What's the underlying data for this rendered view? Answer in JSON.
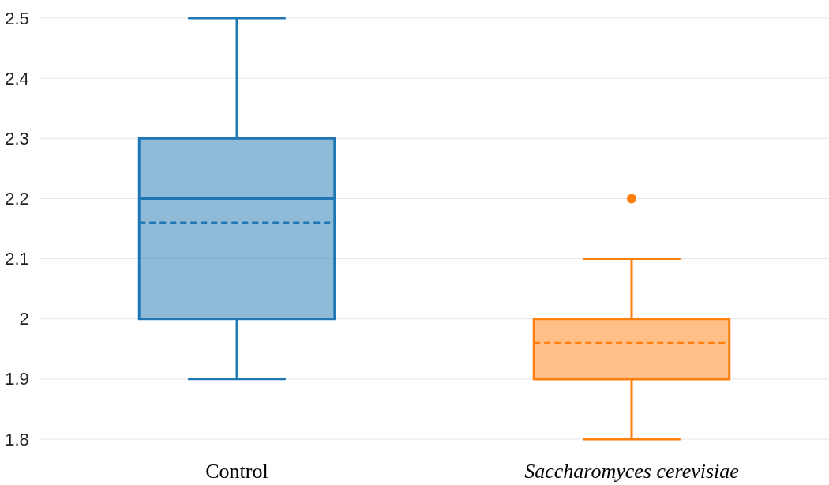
{
  "chart_data": {
    "type": "box",
    "categories": [
      "Control",
      "Saccharomyces cerevisiae"
    ],
    "boxes": [
      {
        "low": 1.9,
        "q1": 2.0,
        "median": 2.2,
        "q3": 2.3,
        "high": 2.5,
        "mean": 2.16
      },
      {
        "low": 1.8,
        "q1": 1.9,
        "median": 1.9,
        "q3": 2.0,
        "high": 2.1,
        "mean": 1.96,
        "outliers": [
          2.2
        ]
      }
    ],
    "colors": [
      "#1f77b4",
      "#ff7f0e"
    ],
    "ylim": [
      1.8,
      2.5
    ],
    "yticks": [
      1.8,
      1.9,
      2,
      2.1,
      2.2,
      2.3,
      2.4,
      2.5
    ],
    "grid": "y"
  }
}
